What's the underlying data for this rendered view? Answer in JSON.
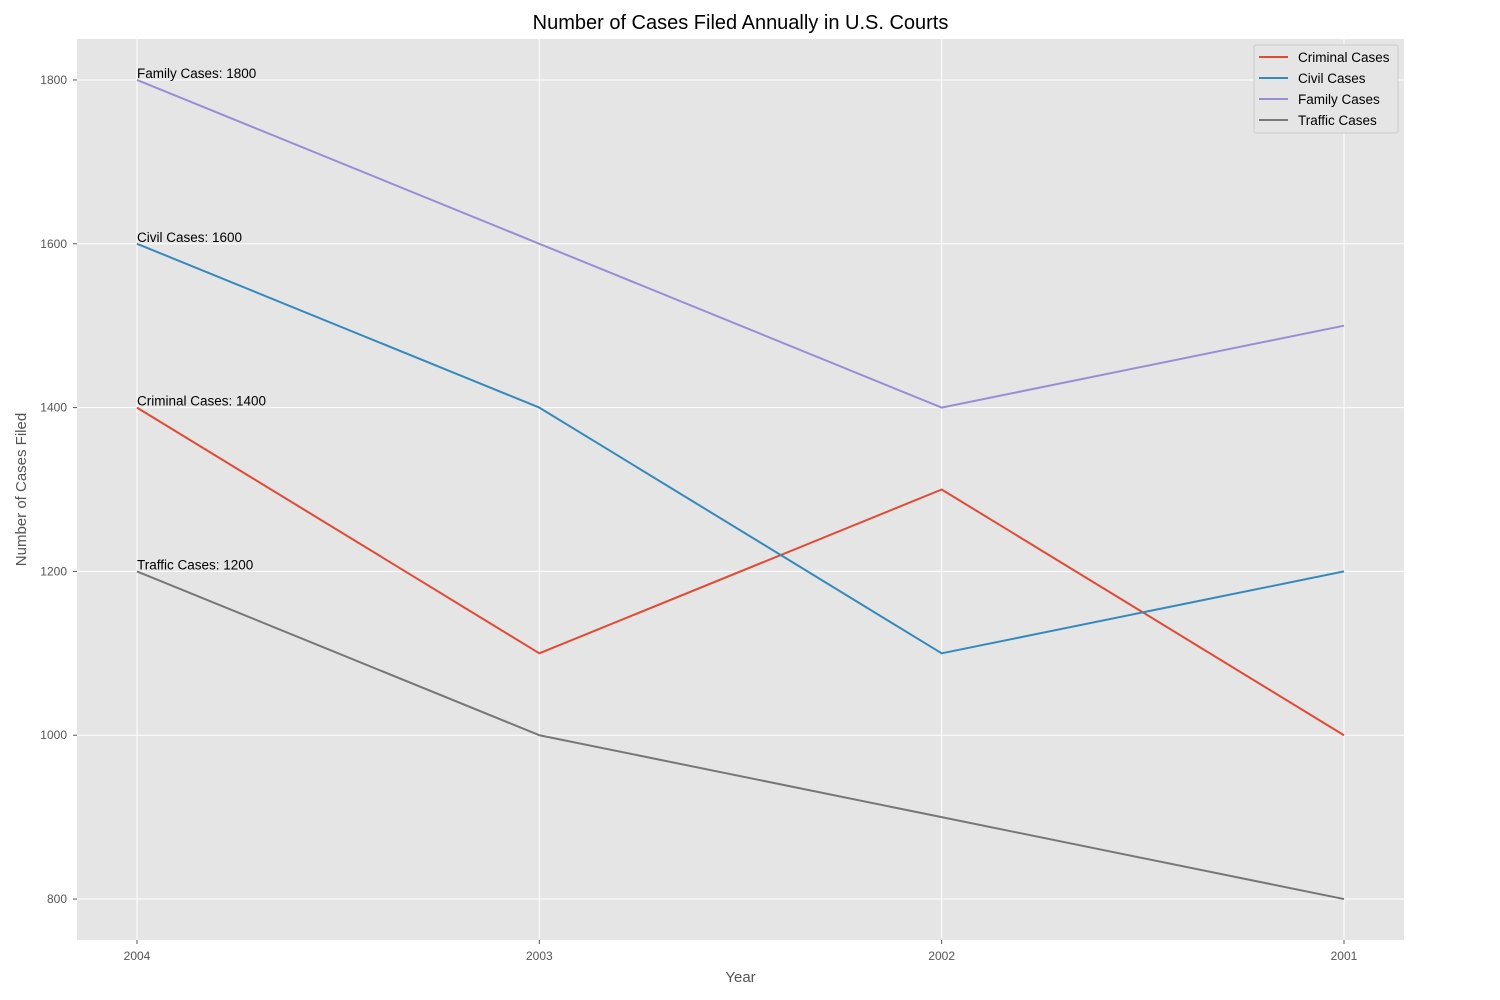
{
  "chart_data": {
    "type": "line",
    "title": "Number of Cases Filed Annually in U.S. Courts",
    "xlabel": "Year",
    "ylabel": "Number of Cases Filed",
    "categories": [
      "2004",
      "2003",
      "2002",
      "2001"
    ],
    "ylim": [
      750,
      1850
    ],
    "yticks": [
      800,
      1000,
      1200,
      1400,
      1600,
      1800
    ],
    "grid": true,
    "legend_position": "top-right",
    "series": [
      {
        "name": "Criminal Cases",
        "color": "#E24A33",
        "values": [
          1400,
          1100,
          1300,
          1000
        ]
      },
      {
        "name": "Civil Cases",
        "color": "#348ABD",
        "values": [
          1600,
          1400,
          1100,
          1200
        ]
      },
      {
        "name": "Family Cases",
        "color": "#988ED5",
        "values": [
          1800,
          1600,
          1400,
          1500
        ]
      },
      {
        "name": "Traffic Cases",
        "color": "#777777",
        "values": [
          1200,
          1000,
          900,
          800
        ]
      }
    ],
    "annotations": [
      {
        "text": "Family Cases: 1800",
        "x": "2004",
        "y": 1800
      },
      {
        "text": "Civil Cases: 1600",
        "x": "2004",
        "y": 1600
      },
      {
        "text": "Criminal Cases: 1400",
        "x": "2004",
        "y": 1400
      },
      {
        "text": "Traffic Cases: 1200",
        "x": "2004",
        "y": 1200
      }
    ]
  }
}
